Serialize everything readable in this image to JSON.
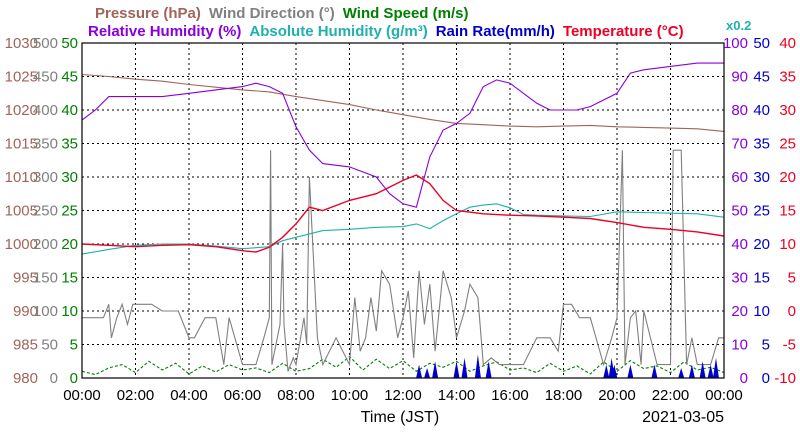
{
  "colors": {
    "pressure": "#a0645a",
    "wind_dir": "#808080",
    "wind_speed": "#008000",
    "humidity": "#8800dd",
    "abs_humidity": "#20b0b0",
    "rain": "#0000cc",
    "temperature": "#ee0022",
    "grid": "#000000"
  },
  "chart_data": {
    "type": "line",
    "legend": {
      "row1": [
        {
          "id": "pressure",
          "label": "Pressure (hPa)"
        },
        {
          "id": "wind_dir",
          "label": "Wind Direction (°)"
        },
        {
          "id": "wind_speed",
          "label": "Wind Speed (m/s)"
        }
      ],
      "row2": [
        {
          "id": "humidity",
          "label": "Relative Humidity (%)"
        },
        {
          "id": "abs_humidity",
          "label": "Absolute Humidity (g/m³)"
        },
        {
          "id": "rain",
          "label": "Rain Rate(mm/h)"
        },
        {
          "id": "temperature",
          "label": "Temperature (°C)"
        }
      ],
      "abs_humidity_scale": "x0.2"
    },
    "xlabel": "Time (JST)",
    "date": "2021-03-05",
    "xlim": [
      0,
      24
    ],
    "x_ticks": [
      "00:00",
      "02:00",
      "04:00",
      "06:00",
      "08:00",
      "10:00",
      "12:00",
      "14:00",
      "16:00",
      "18:00",
      "20:00",
      "22:00",
      "00:00"
    ],
    "axes": {
      "pressure": {
        "ticks": [
          "980",
          "985",
          "990",
          "995",
          "1000",
          "1005",
          "1010",
          "1015",
          "1020",
          "1025",
          "1030"
        ],
        "range": [
          980,
          1030
        ]
      },
      "wind_dir": {
        "ticks": [
          "0",
          "50",
          "100",
          "150",
          "200",
          "250",
          "300",
          "350",
          "400",
          "450",
          "500"
        ],
        "range": [
          0,
          500
        ]
      },
      "wind_speed": {
        "ticks": [
          "0",
          "5",
          "10",
          "15",
          "20",
          "25",
          "30",
          "35",
          "40",
          "45",
          "50"
        ],
        "range": [
          0,
          50
        ]
      },
      "humidity": {
        "ticks": [
          "0",
          "10",
          "20",
          "30",
          "40",
          "50",
          "60",
          "70",
          "80",
          "90",
          "100"
        ],
        "range": [
          0,
          100
        ]
      },
      "rain": {
        "ticks": [
          "0",
          "5",
          "10",
          "15",
          "20",
          "25",
          "30",
          "35",
          "40",
          "45",
          "50"
        ],
        "range": [
          0,
          50
        ]
      },
      "temperature": {
        "ticks": [
          "-10",
          "-5",
          "0",
          "5",
          "10",
          "15",
          "20",
          "25",
          "30",
          "35",
          "40"
        ],
        "range": [
          -10,
          40
        ]
      }
    },
    "grid": true,
    "series": [
      {
        "id": "pressure",
        "name": "Pressure (hPa)",
        "axis": "pressure",
        "x": [
          0,
          1,
          2,
          3,
          4,
          5,
          6,
          7,
          8,
          9,
          10,
          11,
          12,
          13,
          14,
          15,
          16,
          17,
          18,
          19,
          20,
          21,
          22,
          23,
          24
        ],
        "y": [
          1025.3,
          1025.0,
          1024.6,
          1024.3,
          1023.8,
          1023.4,
          1023.0,
          1022.7,
          1022.0,
          1021.4,
          1020.8,
          1020.0,
          1019.3,
          1018.6,
          1018.0,
          1017.8,
          1017.6,
          1017.5,
          1017.6,
          1017.7,
          1017.5,
          1017.4,
          1017.3,
          1017.2,
          1016.8
        ]
      },
      {
        "id": "humidity",
        "name": "Relative Humidity (%)",
        "axis": "humidity",
        "x": [
          0,
          0.5,
          1,
          2,
          3,
          4,
          5,
          6,
          6.5,
          7,
          7.5,
          8,
          8.5,
          9,
          10,
          11,
          11.5,
          12,
          12.5,
          13,
          13.5,
          14,
          14.5,
          15,
          15.5,
          16,
          16.5,
          17,
          17.5,
          18,
          18.5,
          19,
          20,
          20.5,
          21,
          22,
          23,
          24
        ],
        "y": [
          77,
          80,
          84,
          84,
          84,
          85,
          86,
          87,
          88,
          87,
          85,
          75,
          68,
          64,
          63,
          60,
          55,
          52,
          51,
          66,
          74,
          76,
          79,
          87,
          89,
          88,
          85,
          82,
          80,
          80,
          80,
          81,
          85,
          91,
          92,
          93,
          94,
          94
        ]
      },
      {
        "id": "temperature",
        "name": "Temperature (°C)",
        "axis": "temperature",
        "x": [
          0,
          1,
          2,
          3,
          4,
          5,
          6,
          6.5,
          7,
          7.5,
          8,
          8.5,
          9,
          10,
          11,
          11.5,
          12,
          12.5,
          13,
          13.5,
          14,
          15,
          16,
          17,
          18,
          19,
          20,
          21,
          22,
          23,
          24
        ],
        "y": [
          10,
          9.8,
          9.6,
          9.8,
          9.9,
          9.6,
          9,
          8.8,
          9.5,
          11,
          13,
          15.5,
          15,
          16.5,
          17.5,
          18.5,
          19.5,
          20.3,
          19,
          16.5,
          15,
          14.5,
          14.3,
          14.2,
          14.0,
          13.8,
          13.2,
          12.5,
          12.2,
          11.8,
          11.2
        ]
      },
      {
        "id": "abs_humidity",
        "name": "Absolute Humidity (g/m³)",
        "axis": "wind_speed",
        "x": [
          0,
          1,
          2,
          3,
          4,
          5,
          6,
          7,
          7.5,
          8,
          9,
          10,
          11,
          12,
          12.5,
          13,
          13.5,
          14,
          14.5,
          15,
          15.5,
          16,
          16.5,
          17,
          18,
          19,
          20,
          21,
          22,
          23,
          24
        ],
        "y": [
          18.5,
          19.2,
          19.8,
          20,
          20,
          19.7,
          19.3,
          19.6,
          20.5,
          21,
          22,
          22.2,
          22.5,
          22.6,
          23,
          22.3,
          23.5,
          24.5,
          25.5,
          25.8,
          26,
          25.4,
          24.4,
          24.3,
          24.2,
          24.1,
          24.8,
          24.7,
          24.6,
          24.5,
          24
        ]
      },
      {
        "id": "wind_dir",
        "name": "Wind Direction (°)",
        "axis": "wind_dir",
        "x": [
          0,
          0.8,
          1,
          1.1,
          1.3,
          1.5,
          1.7,
          1.9,
          2.2,
          2.6,
          3.0,
          3.4,
          3.6,
          4.0,
          4.2,
          4.6,
          5.0,
          5.3,
          5.5,
          6.0,
          6.5,
          6.8,
          7.0,
          7.05,
          7.1,
          7.4,
          7.5,
          7.55,
          7.7,
          7.9,
          8.0,
          8.3,
          8.4,
          8.5,
          8.8,
          9.0,
          9.5,
          10.0,
          10.2,
          10.4,
          10.6,
          10.8,
          11.0,
          11.2,
          11.5,
          11.8,
          12.0,
          12.2,
          12.4,
          12.6,
          12.8,
          13.0,
          13.2,
          13.5,
          13.8,
          14.0,
          14.3,
          14.5,
          14.8,
          15.0,
          15.3,
          15.6,
          16.0,
          16.5,
          17.0,
          17.5,
          17.8,
          18.0,
          18.3,
          18.6,
          19.0,
          19.5,
          19.8,
          20.0,
          20.2,
          20.3,
          20.5,
          20.7,
          20.9,
          21.0,
          21.5,
          22.0,
          22.1,
          22.4,
          22.6,
          22.8,
          23.0,
          23.5,
          23.8,
          24
        ],
        "y": [
          90,
          90,
          110,
          60,
          90,
          110,
          80,
          110,
          110,
          110,
          100,
          100,
          100,
          60,
          60,
          90,
          90,
          20,
          90,
          20,
          20,
          60,
          90,
          340,
          20,
          80,
          200,
          80,
          10,
          30,
          20,
          90,
          50,
          300,
          60,
          20,
          60,
          20,
          120,
          40,
          60,
          120,
          70,
          160,
          140,
          60,
          90,
          130,
          30,
          160,
          80,
          140,
          40,
          160,
          120,
          60,
          100,
          140,
          120,
          20,
          30,
          20,
          20,
          20,
          60,
          60,
          40,
          110,
          110,
          90,
          90,
          20,
          60,
          90,
          340,
          20,
          90,
          100,
          20,
          100,
          20,
          20,
          340,
          340,
          20,
          60,
          20,
          20,
          60,
          60
        ]
      },
      {
        "id": "wind_speed",
        "name": "Wind Speed (m/s)",
        "axis": "wind_speed",
        "x": [
          0,
          0.5,
          1,
          1.5,
          2,
          2.5,
          3,
          3.5,
          4,
          4.5,
          5,
          5.5,
          6,
          6.5,
          7,
          7.5,
          8,
          8.5,
          9,
          9.5,
          10,
          10.5,
          11,
          11.5,
          12,
          12.5,
          13,
          13.5,
          14,
          14.5,
          15,
          15.5,
          16,
          16.5,
          17,
          17.5,
          18,
          18.5,
          19,
          19.5,
          20,
          20.5,
          21,
          21.5,
          22,
          22.5,
          23,
          23.5,
          24
        ],
        "y": [
          1,
          0.5,
          1.5,
          2,
          0.8,
          2.5,
          1.2,
          2.2,
          0.6,
          1.8,
          0.9,
          2,
          1.2,
          1.5,
          0.8,
          2.2,
          1,
          1.4,
          2.8,
          1.6,
          3.2,
          1.2,
          2.8,
          1.4,
          2.6,
          1,
          2.2,
          1.6,
          2.5,
          1,
          1.8,
          2.4,
          1.2,
          1.5,
          0.8,
          2.2,
          1,
          1.8,
          0.6,
          2.4,
          1,
          2.6,
          1.4,
          1.8,
          0.8,
          2.4,
          1.2,
          1.6,
          0.8
        ]
      },
      {
        "id": "rain",
        "name": "Rain Rate(mm/h)",
        "axis": "rain",
        "bars": [
          [
            12.6,
            2
          ],
          [
            12.9,
            1.5
          ],
          [
            13.2,
            2.5
          ],
          [
            14.0,
            2.5
          ],
          [
            14.3,
            3
          ],
          [
            14.8,
            3.5
          ],
          [
            15.2,
            2.5
          ],
          [
            19.6,
            2
          ],
          [
            19.8,
            3
          ],
          [
            19.9,
            2
          ],
          [
            20.5,
            2
          ],
          [
            21.4,
            2
          ],
          [
            22.4,
            1.5
          ],
          [
            22.8,
            2
          ],
          [
            23.2,
            2.5
          ],
          [
            23.5,
            2
          ],
          [
            23.7,
            3
          ]
        ]
      }
    ]
  }
}
